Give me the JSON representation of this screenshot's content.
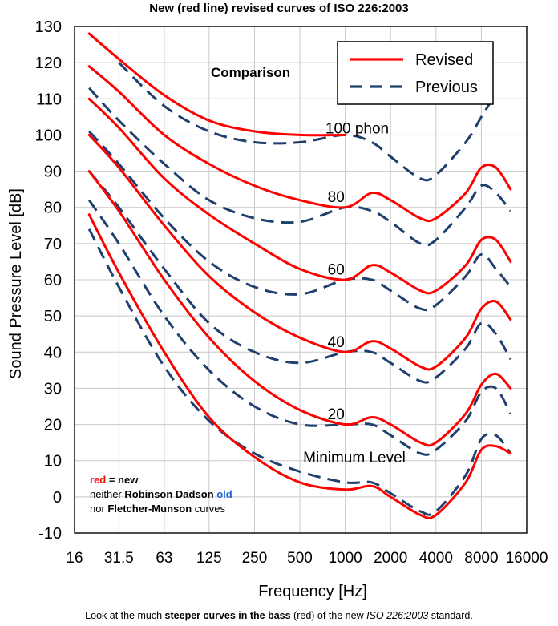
{
  "figure_title": "New (red line) revised curves of ISO 226:2003",
  "caption": {
    "pre": "Look at the much ",
    "bold": "steeper curves in the bass",
    "mid": " (red) of the new ",
    "italic": "ISO 226:2003",
    "post": " standard."
  },
  "chart_data": {
    "type": "line",
    "title": "Comparison",
    "xlabel": "Frequency [Hz]",
    "ylabel": "Sound Pressure Level [dB]",
    "x_scale": "log2",
    "xlim": [
      16,
      16000
    ],
    "ylim": [
      -10,
      130
    ],
    "x_ticks": [
      16,
      31.5,
      63,
      125,
      250,
      500,
      1000,
      2000,
      4000,
      8000,
      16000
    ],
    "x_tick_labels": [
      "16",
      "31.5",
      "63",
      "125",
      "250",
      "500",
      "1000",
      "2000",
      "4000",
      "8000",
      "16000"
    ],
    "y_ticks": [
      -10,
      0,
      10,
      20,
      30,
      40,
      50,
      60,
      70,
      80,
      90,
      100,
      110,
      120,
      130
    ],
    "grid": true,
    "legend": {
      "position": "top-right",
      "entries": [
        {
          "label": "Revised",
          "color": "#ff0000",
          "style": "solid"
        },
        {
          "label": "Previous",
          "color": "#1f3f6e",
          "style": "dashed"
        }
      ]
    },
    "curve_labels": [
      {
        "text": "100 phon",
        "x": 1200,
        "y": 100
      },
      {
        "text": "80",
        "x": 870,
        "y": 81
      },
      {
        "text": "60",
        "x": 870,
        "y": 61
      },
      {
        "text": "40",
        "x": 870,
        "y": 41
      },
      {
        "text": "20",
        "x": 870,
        "y": 21
      },
      {
        "text": "Minimum Level",
        "x": 1150,
        "y": 9
      }
    ],
    "note": {
      "red_word": "red",
      "line1_rest": " = new",
      "line2_pre": "neither ",
      "line2_bold": "Robinson Dadson",
      "line2_old": " old",
      "line3_pre": "nor ",
      "line3_bold": "Fletcher-Munson",
      "line3_post": " curves"
    },
    "series": [
      {
        "name": "Revised 100 phon",
        "group": "Revised",
        "x": [
          20,
          31.5,
          63,
          125,
          250,
          500,
          1000
        ],
        "y": [
          128,
          121,
          111,
          104,
          101,
          100,
          100
        ]
      },
      {
        "name": "Revised 80 phon",
        "group": "Revised",
        "x": [
          20,
          31.5,
          63,
          125,
          250,
          500,
          1000,
          1500,
          2000,
          3150,
          4000,
          6300,
          8000,
          10000,
          12500
        ],
        "y": [
          119,
          112,
          100,
          92,
          86,
          82,
          80,
          84,
          82,
          77,
          77,
          84,
          91,
          91,
          85
        ]
      },
      {
        "name": "Revised 60 phon",
        "group": "Revised",
        "x": [
          20,
          31.5,
          63,
          125,
          250,
          500,
          1000,
          1500,
          2000,
          3150,
          4000,
          6300,
          8000,
          10000,
          12500
        ],
        "y": [
          110,
          102,
          88,
          78,
          70,
          63,
          60,
          64,
          62,
          57,
          57,
          64,
          71,
          71,
          65
        ]
      },
      {
        "name": "Revised 40 phon",
        "group": "Revised",
        "x": [
          20,
          31.5,
          63,
          125,
          250,
          500,
          1000,
          1500,
          2000,
          3150,
          4000,
          6300,
          8000,
          10000,
          12500
        ],
        "y": [
          100,
          91,
          75,
          61,
          51,
          44,
          40,
          43,
          41,
          36,
          36,
          44,
          52,
          54,
          49
        ]
      },
      {
        "name": "Revised 20 phon",
        "group": "Revised",
        "x": [
          20,
          31.5,
          63,
          125,
          250,
          500,
          1000,
          1500,
          2000,
          3150,
          4000,
          6300,
          8000,
          10000,
          12500
        ],
        "y": [
          90,
          79,
          60,
          44,
          32,
          24,
          20,
          22,
          20,
          15,
          15,
          23,
          31,
          34,
          30
        ]
      },
      {
        "name": "Revised Minimum Level",
        "group": "Revised",
        "x": [
          20,
          31.5,
          63,
          125,
          250,
          500,
          1000,
          1500,
          2000,
          3150,
          4000,
          6300,
          8000,
          10000,
          12500
        ],
        "y": [
          78,
          62,
          40,
          22,
          11,
          4,
          2,
          3,
          0,
          -5,
          -5,
          4,
          13,
          14,
          12
        ]
      },
      {
        "name": "Previous 100 phon",
        "group": "Previous",
        "x": [
          31.5,
          63,
          125,
          250,
          500,
          1000,
          1500,
          2000,
          3150,
          4000,
          6300,
          8000,
          9500
        ],
        "y": [
          120,
          108,
          101,
          98,
          98,
          100,
          98,
          94,
          88,
          89,
          98,
          105,
          110
        ]
      },
      {
        "name": "Previous 80 phon",
        "group": "Previous",
        "x": [
          20,
          31.5,
          63,
          125,
          250,
          500,
          1000,
          1500,
          2000,
          3150,
          4000,
          6300,
          8000,
          10000,
          12500
        ],
        "y": [
          113,
          104,
          92,
          82,
          77,
          76,
          80,
          79,
          76,
          70,
          71,
          80,
          86,
          84,
          79
        ]
      },
      {
        "name": "Previous 60 phon",
        "group": "Previous",
        "x": [
          20,
          31.5,
          63,
          125,
          250,
          500,
          1000,
          1500,
          2000,
          3150,
          4000,
          6300,
          8000,
          10000,
          12500
        ],
        "y": [
          101,
          92,
          77,
          65,
          58,
          56,
          60,
          60,
          57,
          52,
          53,
          61,
          67,
          63,
          58
        ]
      },
      {
        "name": "Previous 40 phon",
        "group": "Previous",
        "x": [
          20,
          31.5,
          63,
          125,
          250,
          500,
          1000,
          1500,
          2000,
          3150,
          4000,
          6300,
          8000,
          10000,
          12500
        ],
        "y": [
          90,
          80,
          63,
          48,
          40,
          37,
          40,
          40,
          37,
          32,
          33,
          41,
          48,
          45,
          38
        ]
      },
      {
        "name": "Previous 20 phon",
        "group": "Previous",
        "x": [
          20,
          31.5,
          63,
          125,
          250,
          500,
          1000,
          1500,
          2000,
          3150,
          4000,
          6300,
          8000,
          10000,
          12500
        ],
        "y": [
          82,
          70,
          50,
          35,
          25,
          20,
          20,
          20,
          17,
          12,
          13,
          21,
          29,
          30,
          23
        ]
      },
      {
        "name": "Previous Minimum Level",
        "group": "Previous",
        "x": [
          20,
          31.5,
          63,
          125,
          250,
          500,
          1000,
          1500,
          2000,
          3150,
          4000,
          6300,
          8000,
          10000,
          12500
        ],
        "y": [
          74,
          58,
          36,
          21,
          12,
          7,
          4,
          4,
          1,
          -4,
          -4,
          6,
          16,
          17,
          12
        ]
      }
    ]
  }
}
